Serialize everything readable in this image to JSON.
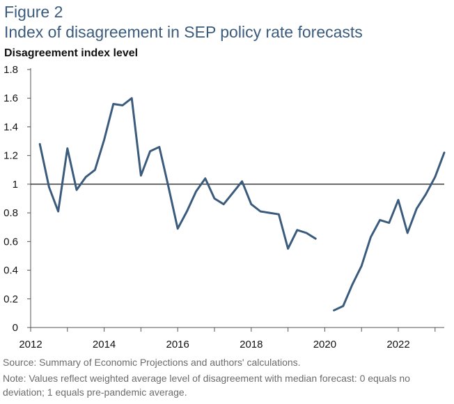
{
  "figure_label": "Figure 2",
  "chart_data": {
    "type": "line",
    "title": "Index of disagreement in SEP policy rate forecasts",
    "ylabel": "Disagreement index level",
    "xlabel": "",
    "ylim": [
      0,
      1.8
    ],
    "xlim": [
      2012,
      2023.25
    ],
    "y_ticks": [
      "0",
      "0.2",
      "0.4",
      "0.6",
      "0.8",
      "1",
      "1.2",
      "1.4",
      "1.6",
      "1.8"
    ],
    "x_ticks": [
      "2012",
      "2014",
      "2016",
      "2018",
      "2020",
      "2022"
    ],
    "reference_line": 1,
    "line_color": "#3b5b7d",
    "series": [
      {
        "segments": [
          [
            [
              2012.25,
              1.28
            ],
            [
              2012.5,
              0.98
            ],
            [
              2012.75,
              0.81
            ],
            [
              2013.0,
              1.25
            ],
            [
              2013.25,
              0.96
            ],
            [
              2013.5,
              1.05
            ],
            [
              2013.75,
              1.1
            ],
            [
              2014.0,
              1.31
            ],
            [
              2014.25,
              1.56
            ],
            [
              2014.5,
              1.55
            ],
            [
              2014.75,
              1.6
            ],
            [
              2015.0,
              1.06
            ],
            [
              2015.25,
              1.23
            ],
            [
              2015.5,
              1.26
            ],
            [
              2015.75,
              0.98
            ],
            [
              2016.0,
              0.69
            ],
            [
              2016.25,
              0.81
            ],
            [
              2016.5,
              0.95
            ],
            [
              2016.75,
              1.04
            ],
            [
              2017.0,
              0.9
            ],
            [
              2017.25,
              0.86
            ],
            [
              2017.5,
              0.94
            ],
            [
              2017.75,
              1.02
            ],
            [
              2018.0,
              0.86
            ],
            [
              2018.25,
              0.81
            ],
            [
              2018.5,
              0.8
            ],
            [
              2018.75,
              0.79
            ],
            [
              2019.0,
              0.55
            ],
            [
              2019.25,
              0.68
            ],
            [
              2019.5,
              0.66
            ],
            [
              2019.75,
              0.62
            ]
          ],
          [
            [
              2020.25,
              0.12
            ],
            [
              2020.5,
              0.15
            ],
            [
              2020.75,
              0.3
            ],
            [
              2021.0,
              0.43
            ],
            [
              2021.25,
              0.63
            ],
            [
              2021.5,
              0.75
            ],
            [
              2021.75,
              0.73
            ],
            [
              2022.0,
              0.89
            ],
            [
              2022.25,
              0.66
            ],
            [
              2022.5,
              0.83
            ],
            [
              2022.75,
              0.93
            ],
            [
              2023.0,
              1.05
            ],
            [
              2023.25,
              1.22
            ]
          ]
        ]
      }
    ]
  },
  "source_text": "Source: Summary of Economic Projections and authors' calculations.",
  "note_text": "Note: Values reflect weighted average level of disagreement with median forecast: 0 equals no deviation; 1 equals pre-pandemic average."
}
